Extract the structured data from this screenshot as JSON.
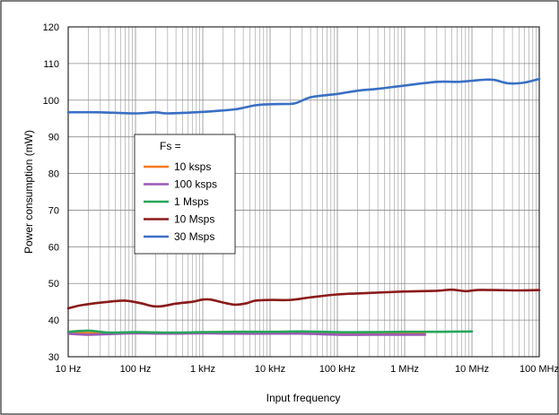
{
  "chart_data": {
    "type": "line",
    "title": "",
    "xlabel": "Input frequency",
    "ylabel": "Power consumption (mW)",
    "x_scale": "log",
    "xlim": [
      10,
      100000000
    ],
    "ylim": [
      30,
      120
    ],
    "grid": true,
    "x_ticks": [
      {
        "value": 10,
        "label": "10 Hz"
      },
      {
        "value": 100,
        "label": "100 Hz"
      },
      {
        "value": 1000,
        "label": "1 kHz"
      },
      {
        "value": 10000,
        "label": "10 kHz"
      },
      {
        "value": 100000,
        "label": "100 kHz"
      },
      {
        "value": 1000000,
        "label": "1 MHz"
      },
      {
        "value": 10000000,
        "label": "10 MHz"
      },
      {
        "value": 100000000,
        "label": "100 MHz"
      }
    ],
    "y_ticks": [
      30,
      40,
      50,
      60,
      70,
      80,
      90,
      100,
      110,
      120
    ],
    "legend": {
      "title": "Fs =",
      "placement": "center-left"
    },
    "series": [
      {
        "name": "10 ksps",
        "color": "#f47b20",
        "points": [
          [
            10,
            36.5
          ],
          [
            100,
            36.4
          ],
          [
            1000,
            36.5
          ],
          [
            10000,
            36.5
          ],
          [
            100000,
            36.4
          ],
          [
            1000000,
            36.3
          ],
          [
            2000000,
            36.3
          ]
        ]
      },
      {
        "name": "100 ksps",
        "color": "#9b59b6",
        "points": [
          [
            10,
            36.3
          ],
          [
            20,
            36.0
          ],
          [
            40,
            36.2
          ],
          [
            100,
            36.4
          ],
          [
            300,
            36.3
          ],
          [
            1000,
            36.4
          ],
          [
            3000,
            36.3
          ],
          [
            10000,
            36.3
          ],
          [
            30000,
            36.3
          ],
          [
            100000,
            36.0
          ],
          [
            300000,
            36.0
          ],
          [
            1000000,
            36.0
          ],
          [
            2000000,
            36.0
          ]
        ]
      },
      {
        "name": "1 Msps",
        "color": "#27a55a",
        "points": [
          [
            10,
            36.8
          ],
          [
            20,
            37.1
          ],
          [
            40,
            36.6
          ],
          [
            100,
            36.7
          ],
          [
            300,
            36.6
          ],
          [
            1000,
            36.7
          ],
          [
            3000,
            36.8
          ],
          [
            10000,
            36.8
          ],
          [
            30000,
            36.9
          ],
          [
            100000,
            36.7
          ],
          [
            300000,
            36.7
          ],
          [
            1000000,
            36.8
          ],
          [
            3000000,
            36.8
          ],
          [
            10000000,
            36.9
          ]
        ]
      },
      {
        "name": "10 Msps",
        "color": "#8b1a1a",
        "points": [
          [
            10,
            43.2
          ],
          [
            15,
            44.0
          ],
          [
            25,
            44.6
          ],
          [
            40,
            45.0
          ],
          [
            70,
            45.3
          ],
          [
            120,
            44.6
          ],
          [
            180,
            43.8
          ],
          [
            250,
            43.8
          ],
          [
            400,
            44.5
          ],
          [
            700,
            45.0
          ],
          [
            1000,
            45.6
          ],
          [
            1300,
            45.6
          ],
          [
            2000,
            44.8
          ],
          [
            3000,
            44.2
          ],
          [
            4500,
            44.6
          ],
          [
            6000,
            45.3
          ],
          [
            10000,
            45.5
          ],
          [
            20000,
            45.5
          ],
          [
            40000,
            46.2
          ],
          [
            100000,
            47.0
          ],
          [
            300000,
            47.4
          ],
          [
            1000000,
            47.8
          ],
          [
            3000000,
            48.0
          ],
          [
            5000000,
            48.3
          ],
          [
            8000000,
            47.9
          ],
          [
            12000000,
            48.2
          ],
          [
            20000000,
            48.2
          ],
          [
            50000000,
            48.1
          ],
          [
            100000000,
            48.2
          ]
        ]
      },
      {
        "name": "30 Msps",
        "color": "#3a6fc4",
        "points": [
          [
            10,
            96.7
          ],
          [
            30,
            96.7
          ],
          [
            100,
            96.4
          ],
          [
            200,
            96.7
          ],
          [
            300,
            96.4
          ],
          [
            1000,
            96.8
          ],
          [
            3000,
            97.5
          ],
          [
            6000,
            98.6
          ],
          [
            10000,
            98.9
          ],
          [
            20000,
            99.0
          ],
          [
            25000,
            99.3
          ],
          [
            40000,
            100.8
          ],
          [
            70000,
            101.4
          ],
          [
            100000,
            101.7
          ],
          [
            200000,
            102.6
          ],
          [
            400000,
            103.1
          ],
          [
            1000000,
            104.0
          ],
          [
            3000000,
            105.0
          ],
          [
            6000000,
            105.0
          ],
          [
            10000000,
            105.3
          ],
          [
            16000000,
            105.6
          ],
          [
            22000000,
            105.5
          ],
          [
            35000000,
            104.6
          ],
          [
            60000000,
            104.8
          ],
          [
            100000000,
            105.8
          ]
        ]
      }
    ]
  }
}
